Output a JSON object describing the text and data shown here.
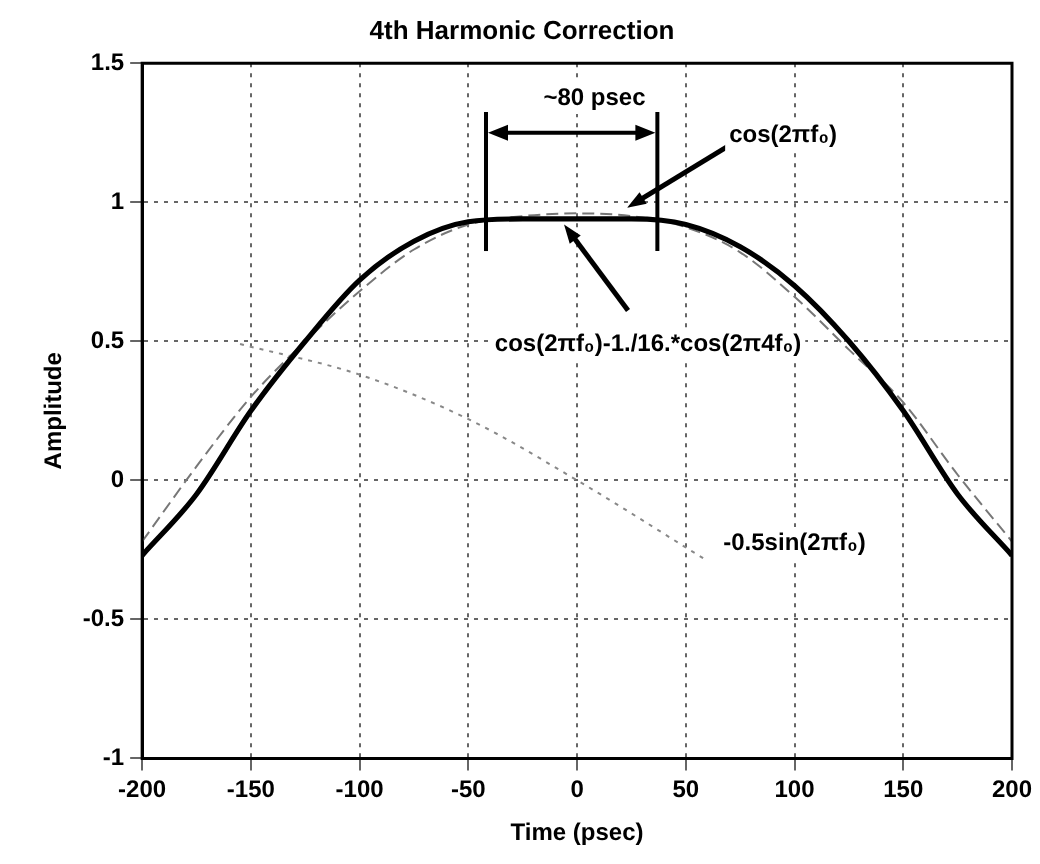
{
  "chart_data": {
    "type": "line",
    "title": "4th Harmonic Correction",
    "xlabel": "Time (psec)",
    "ylabel": "Amplitude",
    "xlim": [
      -200,
      200
    ],
    "xticks": [
      -200,
      -150,
      -100,
      -50,
      0,
      50,
      100,
      150,
      200
    ],
    "ylim": [
      -1,
      1.5
    ],
    "yticks": [
      -1,
      -0.5,
      0,
      0.5,
      1,
      1.5
    ],
    "grid": true,
    "legend": false,
    "marker": "none",
    "series": [
      {
        "color": "#000000",
        "x": [
          -200,
          -175,
          -150,
          -125,
          -100,
          -75,
          -50,
          -25,
          0,
          25,
          50,
          75,
          100,
          125,
          150,
          175,
          200
        ],
        "values": [
          -0.27,
          -0.05,
          0.25,
          0.5,
          0.72,
          0.86,
          0.93,
          0.94,
          0.94,
          0.94,
          0.92,
          0.84,
          0.7,
          0.5,
          0.25,
          -0.05,
          -0.27
        ],
        "line_style": "solid"
      },
      {
        "color": "#777777",
        "x": [
          -200,
          -175,
          -150,
          -125,
          -100,
          -75,
          -50,
          -25,
          0,
          25,
          50,
          75,
          100,
          125,
          150,
          175,
          200
        ],
        "values": [
          -0.22,
          0.05,
          0.3,
          0.5,
          0.68,
          0.83,
          0.92,
          0.95,
          0.96,
          0.95,
          0.91,
          0.82,
          0.66,
          0.47,
          0.28,
          0.02,
          -0.22
        ],
        "line_style": "dashed"
      },
      {
        "color": "#888888",
        "x": [
          -155,
          -100,
          -50,
          0,
          60
        ],
        "values": [
          0.49,
          0.38,
          0.22,
          0,
          -0.29
        ],
        "line_style": "dotted"
      }
    ],
    "annotations": [
      "~80 psec",
      {
        "text": "cos(2πf₀)",
        "x": 23,
        "y": 0.98
      },
      {
        "text": "cos(2πf₀)-1./16.*cos(2π4f₀)",
        "x": -6,
        "y": 0.92
      },
      "-0.5sin(2πf₀)"
    ]
  }
}
